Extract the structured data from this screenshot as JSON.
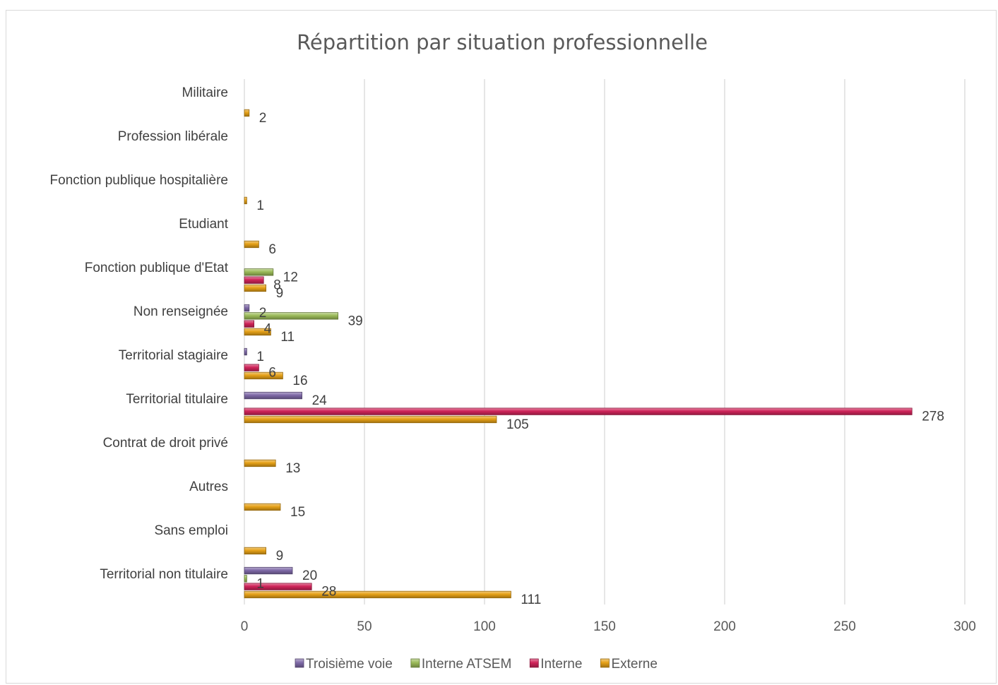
{
  "chart_data": {
    "type": "bar",
    "orientation": "horizontal",
    "title": "Répartition par situation professionnelle",
    "categories": [
      "Territorial non titulaire",
      "Sans emploi",
      "Autres",
      "Contrat de droit privé",
      "Territorial titulaire",
      "Territorial stagiaire",
      "Non renseignée",
      "Fonction publique d'Etat",
      "Etudiant",
      "Fonction publique hospitalière",
      "Profession libérale",
      "Militaire"
    ],
    "series": [
      {
        "name": "Troisième voie",
        "color": "#7f6aa8",
        "values": [
          20,
          null,
          null,
          null,
          24,
          1,
          2,
          null,
          null,
          null,
          null,
          null
        ]
      },
      {
        "name": "Interne ATSEM",
        "color": "#9bbb59",
        "values": [
          1,
          null,
          null,
          null,
          null,
          null,
          39,
          12,
          null,
          null,
          null,
          null
        ]
      },
      {
        "name": "Interne",
        "color": "#d0245a",
        "values": [
          28,
          null,
          null,
          null,
          278,
          6,
          4,
          8,
          null,
          null,
          null,
          null
        ]
      },
      {
        "name": "Externe",
        "color": "#e6a117",
        "values": [
          111,
          9,
          15,
          13,
          105,
          16,
          11,
          9,
          6,
          1,
          null,
          2
        ]
      }
    ],
    "xlim": [
      0,
      300
    ],
    "xticks": [
      0,
      50,
      100,
      150,
      200,
      250,
      300
    ],
    "grid": true,
    "legend_position": "bottom"
  }
}
